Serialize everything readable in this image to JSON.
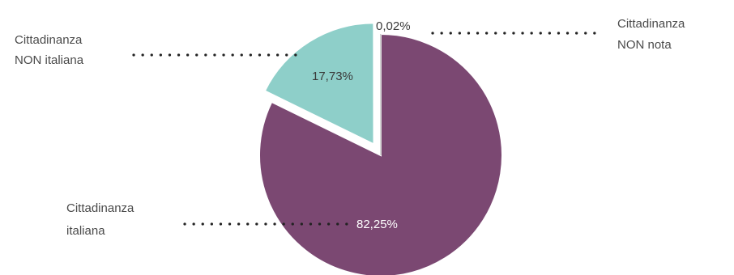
{
  "chart_data": {
    "type": "pie",
    "title": "",
    "slices": [
      {
        "name": "Cittadinanza italiana",
        "label_lines": [
          "Cittadinanza",
          "italiana"
        ],
        "value": 82.25,
        "value_label": "82,25%",
        "color": "#7b4872",
        "label_color": "#ffffff",
        "legend_side": "left"
      },
      {
        "name": "Cittadinanza NON italiana",
        "label_lines": [
          "Cittadinanza",
          "NON italiana"
        ],
        "value": 17.73,
        "value_label": "17,73%",
        "color": "#8ecfc9",
        "label_color": "#3a3a3a",
        "legend_side": "left",
        "exploded": true
      },
      {
        "name": "Cittadinanza NON nota",
        "label_lines": [
          "Cittadinanza",
          "NON nota"
        ],
        "value": 0.02,
        "value_label": "0,02%",
        "color": "#c9c9c9",
        "label_color": "#3a3a3a",
        "legend_side": "right"
      }
    ],
    "start_angle_deg": 0,
    "direction": "clockwise",
    "legend": "callout-labels"
  }
}
